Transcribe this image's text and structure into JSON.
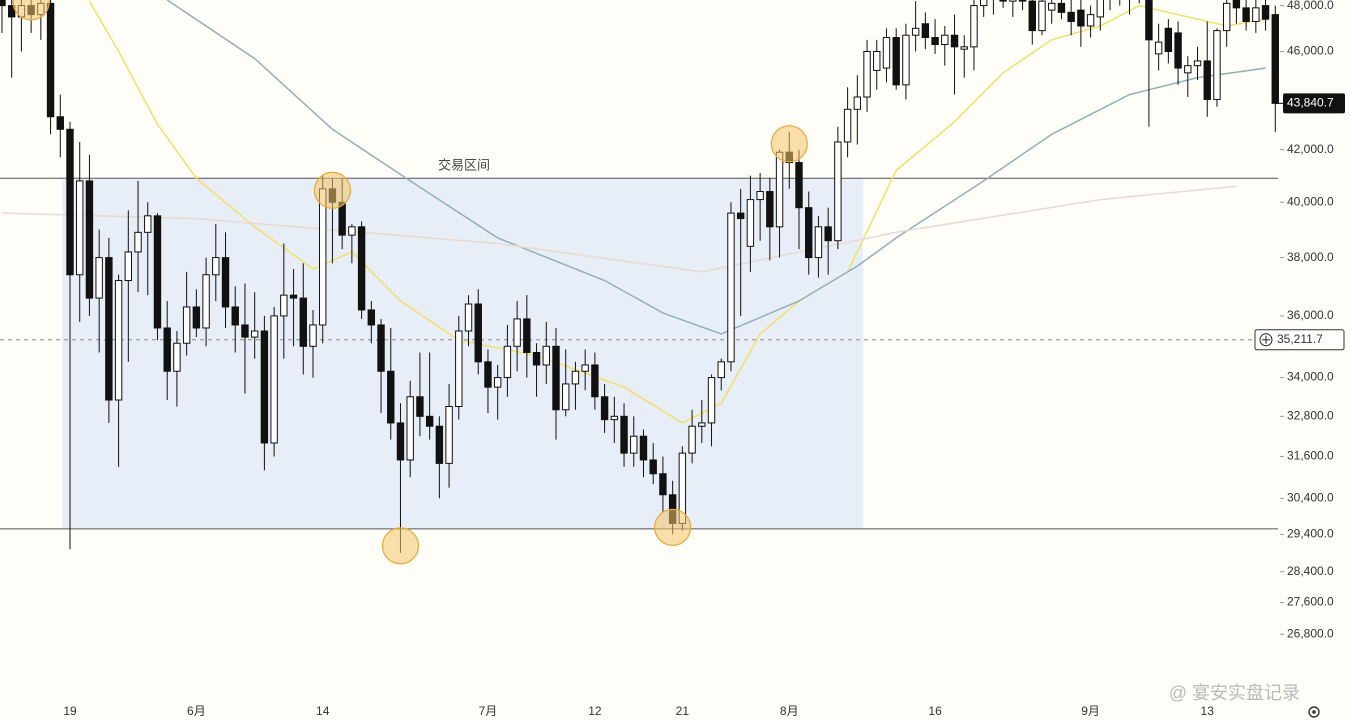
{
  "chart_data": {
    "type": "candlestick",
    "categories": [
      null,
      null,
      null,
      null,
      null,
      null,
      null,
      "19",
      null,
      null,
      null,
      null,
      null,
      null,
      null,
      null,
      null,
      null,
      null,
      null,
      "6月",
      null,
      null,
      null,
      null,
      null,
      null,
      null,
      null,
      null,
      null,
      null,
      null,
      "14",
      null,
      null,
      null,
      null,
      null,
      null,
      null,
      null,
      null,
      null,
      null,
      null,
      null,
      null,
      null,
      null,
      "7月",
      null,
      null,
      null,
      null,
      null,
      null,
      null,
      null,
      null,
      null,
      "12",
      null,
      null,
      null,
      null,
      null,
      null,
      null,
      null,
      "21",
      null,
      null,
      null,
      null,
      null,
      null,
      null,
      null,
      null,
      null,
      "8月",
      null,
      null,
      null,
      null,
      null,
      null,
      null,
      null,
      null,
      null,
      null,
      null,
      null,
      null,
      "16",
      null,
      null,
      null,
      null,
      null,
      null,
      null,
      null,
      null,
      null,
      null,
      null,
      null,
      null,
      null,
      "9月",
      null,
      null,
      null,
      null,
      null,
      null,
      null,
      null,
      null,
      null,
      null,
      "13",
      null,
      null,
      null,
      null,
      null,
      null,
      null
    ],
    "open": [
      48500,
      48000,
      47500,
      48000,
      47600,
      48100,
      43300,
      42800,
      37400,
      40800,
      36600,
      38000,
      33300,
      37200,
      38200,
      38900,
      39500,
      35600,
      34200,
      35100,
      36300,
      35600,
      37400,
      38000,
      36300,
      35700,
      35300,
      35500,
      32000,
      36000,
      36700,
      36600,
      35000,
      35700,
      40500,
      40000,
      38800,
      39100,
      36200,
      35700,
      34200,
      32600,
      31500,
      33400,
      32800,
      32500,
      31400,
      33100,
      35500,
      36400,
      34500,
      33700,
      34000,
      35000,
      35900,
      34800,
      34400,
      35000,
      33000,
      33800,
      34200,
      34400,
      33400,
      32700,
      32800,
      31700,
      32200,
      31500,
      31100,
      30500,
      29700,
      31700,
      32500,
      32600,
      34000,
      34500,
      39600,
      38400,
      40100,
      40400,
      39100,
      41900,
      41500,
      39800,
      38000,
      39100,
      38600,
      42300,
      43600,
      44100,
      45200,
      45300,
      46600,
      44600,
      46700,
      47200,
      46600,
      46300,
      46700,
      46100,
      46200,
      48000,
      48300,
      48500,
      48200,
      48600,
      48200,
      46900,
      47800,
      48100,
      47700,
      47800,
      47100,
      47500,
      48300,
      48600,
      48400,
      48700,
      48300,
      45900,
      47000,
      46800,
      45100,
      45400,
      45600,
      44000,
      46900,
      48300,
      47900,
      47300,
      48000,
      47600
    ],
    "high": [
      49500,
      48800,
      48600,
      48700,
      48500,
      48500,
      44200,
      43100,
      42300,
      41800,
      39000,
      38700,
      37400,
      39700,
      40800,
      40000,
      39600,
      36500,
      35500,
      37500,
      36900,
      38000,
      39200,
      38900,
      37000,
      37100,
      36800,
      36000,
      36300,
      38500,
      37600,
      37800,
      36200,
      41000,
      40900,
      40900,
      39200,
      39300,
      36500,
      35900,
      35600,
      33200,
      33900,
      34800,
      34800,
      32800,
      33800,
      36000,
      36700,
      36900,
      34900,
      34400,
      35700,
      36500,
      36700,
      35100,
      35800,
      35600,
      34900,
      34500,
      34900,
      34800,
      33800,
      33400,
      33200,
      32800,
      32400,
      32000,
      31600,
      30900,
      31900,
      33000,
      33300,
      34100,
      34600,
      40000,
      40500,
      41000,
      41100,
      40900,
      42000,
      42700,
      42000,
      40400,
      39500,
      39800,
      42900,
      44500,
      45000,
      46500,
      46500,
      47000,
      47000,
      47200,
      48200,
      47700,
      47400,
      47100,
      47600,
      46700,
      48300,
      48500,
      48800,
      49000,
      48900,
      49100,
      48700,
      48600,
      48600,
      48700,
      48400,
      48300,
      48000,
      48700,
      48900,
      49000,
      48900,
      49100,
      48600,
      47200,
      47400,
      47300,
      45800,
      46200,
      47300,
      47000,
      48500,
      48700,
      48400,
      48600,
      48500,
      48000
    ],
    "low": [
      46800,
      44900,
      46000,
      46800,
      46500,
      42600,
      41700,
      29000,
      35800,
      36000,
      34800,
      32600,
      31300,
      34500,
      36800,
      36700,
      35200,
      33300,
      33100,
      34700,
      35300,
      35000,
      36500,
      35600,
      34800,
      33500,
      34600,
      31200,
      31600,
      34600,
      35000,
      34100,
      34000,
      35100,
      37800,
      38300,
      37800,
      35900,
      35100,
      32900,
      32100,
      28900,
      31000,
      32200,
      32100,
      30400,
      30700,
      32700,
      35000,
      34100,
      32900,
      32700,
      33400,
      34200,
      34000,
      33400,
      33800,
      32100,
      32800,
      33000,
      33600,
      33000,
      32300,
      32000,
      31300,
      31300,
      31000,
      30800,
      30000,
      29400,
      29500,
      31400,
      32000,
      31900,
      33600,
      34200,
      36000,
      37500,
      38600,
      37900,
      38000,
      40500,
      38300,
      37400,
      37300,
      37400,
      38300,
      41700,
      42200,
      43500,
      44400,
      44700,
      44400,
      44000,
      46000,
      46100,
      45900,
      45400,
      44200,
      44900,
      45200,
      47500,
      47600,
      47900,
      47500,
      47800,
      46300,
      46700,
      47200,
      47400,
      46700,
      46200,
      46600,
      46900,
      47800,
      48000,
      47600,
      48100,
      42900,
      45200,
      45500,
      44600,
      44100,
      44800,
      43300,
      43700,
      46200,
      47200,
      46900,
      46800,
      46900,
      42700
    ],
    "close": [
      48000,
      47500,
      48000,
      47600,
      48100,
      43300,
      42800,
      37400,
      40800,
      36600,
      38000,
      33300,
      37200,
      38200,
      38900,
      39500,
      35600,
      34200,
      35100,
      36300,
      35600,
      37400,
      38000,
      36300,
      35700,
      35300,
      35500,
      32000,
      36000,
      36700,
      36600,
      35000,
      35700,
      40500,
      40000,
      38800,
      39100,
      36200,
      35700,
      34200,
      32600,
      31500,
      33400,
      32800,
      32500,
      31400,
      33100,
      35500,
      36400,
      34500,
      33700,
      34000,
      35000,
      35900,
      34800,
      34400,
      35000,
      33000,
      33800,
      34200,
      34400,
      33400,
      32700,
      32800,
      31700,
      32200,
      31500,
      31100,
      30500,
      29700,
      31700,
      32500,
      32600,
      34000,
      34500,
      39600,
      39400,
      40100,
      40400,
      39100,
      41900,
      41500,
      39800,
      38000,
      39100,
      38600,
      42300,
      43600,
      44100,
      46000,
      46000,
      46600,
      44600,
      46700,
      47000,
      46600,
      46300,
      46700,
      46200,
      46200,
      48000,
      48300,
      48500,
      48200,
      48600,
      48200,
      46900,
      48200,
      48100,
      47700,
      47300,
      47100,
      47600,
      48300,
      48600,
      48400,
      48700,
      48300,
      46500,
      46400,
      46000,
      45300,
      45400,
      45600,
      44000,
      46900,
      48100,
      47900,
      47300,
      47900,
      47400,
      43840.7
    ],
    "up_color": "#ffffff",
    "down_color": "#111111",
    "moving_averages": [
      {
        "color": "#f3df6a",
        "x": [
          9,
          12,
          16,
          20,
          26,
          32,
          36,
          41,
          47,
          55,
          64,
          70,
          74,
          78,
          82,
          87,
          92,
          98,
          103,
          108,
          113,
          117,
          121,
          126,
          130
        ],
        "values": [
          48200,
          46000,
          43000,
          40900,
          39100,
          37600,
          38200,
          36500,
          35200,
          34700,
          33700,
          32600,
          33200,
          35400,
          36500,
          37500,
          41200,
          43100,
          45100,
          46500,
          47100,
          48000,
          47600,
          47100,
          47400
        ]
      },
      {
        "color": "#8fb1b8",
        "x": [
          17,
          26,
          34,
          42,
          51,
          62,
          68,
          74,
          82,
          88,
          92,
          101,
          108,
          116,
          123,
          130
        ],
        "values": [
          48250,
          45700,
          42800,
          40800,
          38700,
          37200,
          36100,
          35400,
          36500,
          37700,
          38700,
          40800,
          42600,
          44200,
          44900,
          45300
        ]
      },
      {
        "color": "#ead9d2",
        "x": [
          0,
          20,
          51,
          72,
          92,
          113,
          127
        ],
        "values": [
          39600,
          39400,
          38500,
          37500,
          38900,
          40100,
          40600
        ]
      }
    ],
    "range": {
      "label": "交易区间",
      "high": 40900,
      "low": 29550,
      "color": "#dfe8f7"
    },
    "crosshair": {
      "value": 35211.7,
      "label": "35,211.7"
    },
    "last_price": {
      "value": 43840.7,
      "label": "43,840.7"
    },
    "ylim": [
      25450,
      48250
    ],
    "log_scale": true,
    "yticks": [
      {
        "value": 48000,
        "label": "48,000.0"
      },
      {
        "value": 46000,
        "label": "46,000.0"
      },
      {
        "value": 42000,
        "label": "42,000.0"
      },
      {
        "value": 40000,
        "label": "40,000.0"
      },
      {
        "value": 38000,
        "label": "38,000.0"
      },
      {
        "value": 36000,
        "label": "36,000.0"
      },
      {
        "value": 34000,
        "label": "34,000.0"
      },
      {
        "value": 32800,
        "label": "32,800.0"
      },
      {
        "value": 31600,
        "label": "31,600.0"
      },
      {
        "value": 30400,
        "label": "30,400.0"
      },
      {
        "value": 29400,
        "label": "29,400.0"
      },
      {
        "value": 28400,
        "label": "28,400.0"
      },
      {
        "value": 27600,
        "label": "27,600.0"
      },
      {
        "value": 26800,
        "label": "26,800.0"
      }
    ],
    "watermark": "@ 宴安实盘记录"
  }
}
